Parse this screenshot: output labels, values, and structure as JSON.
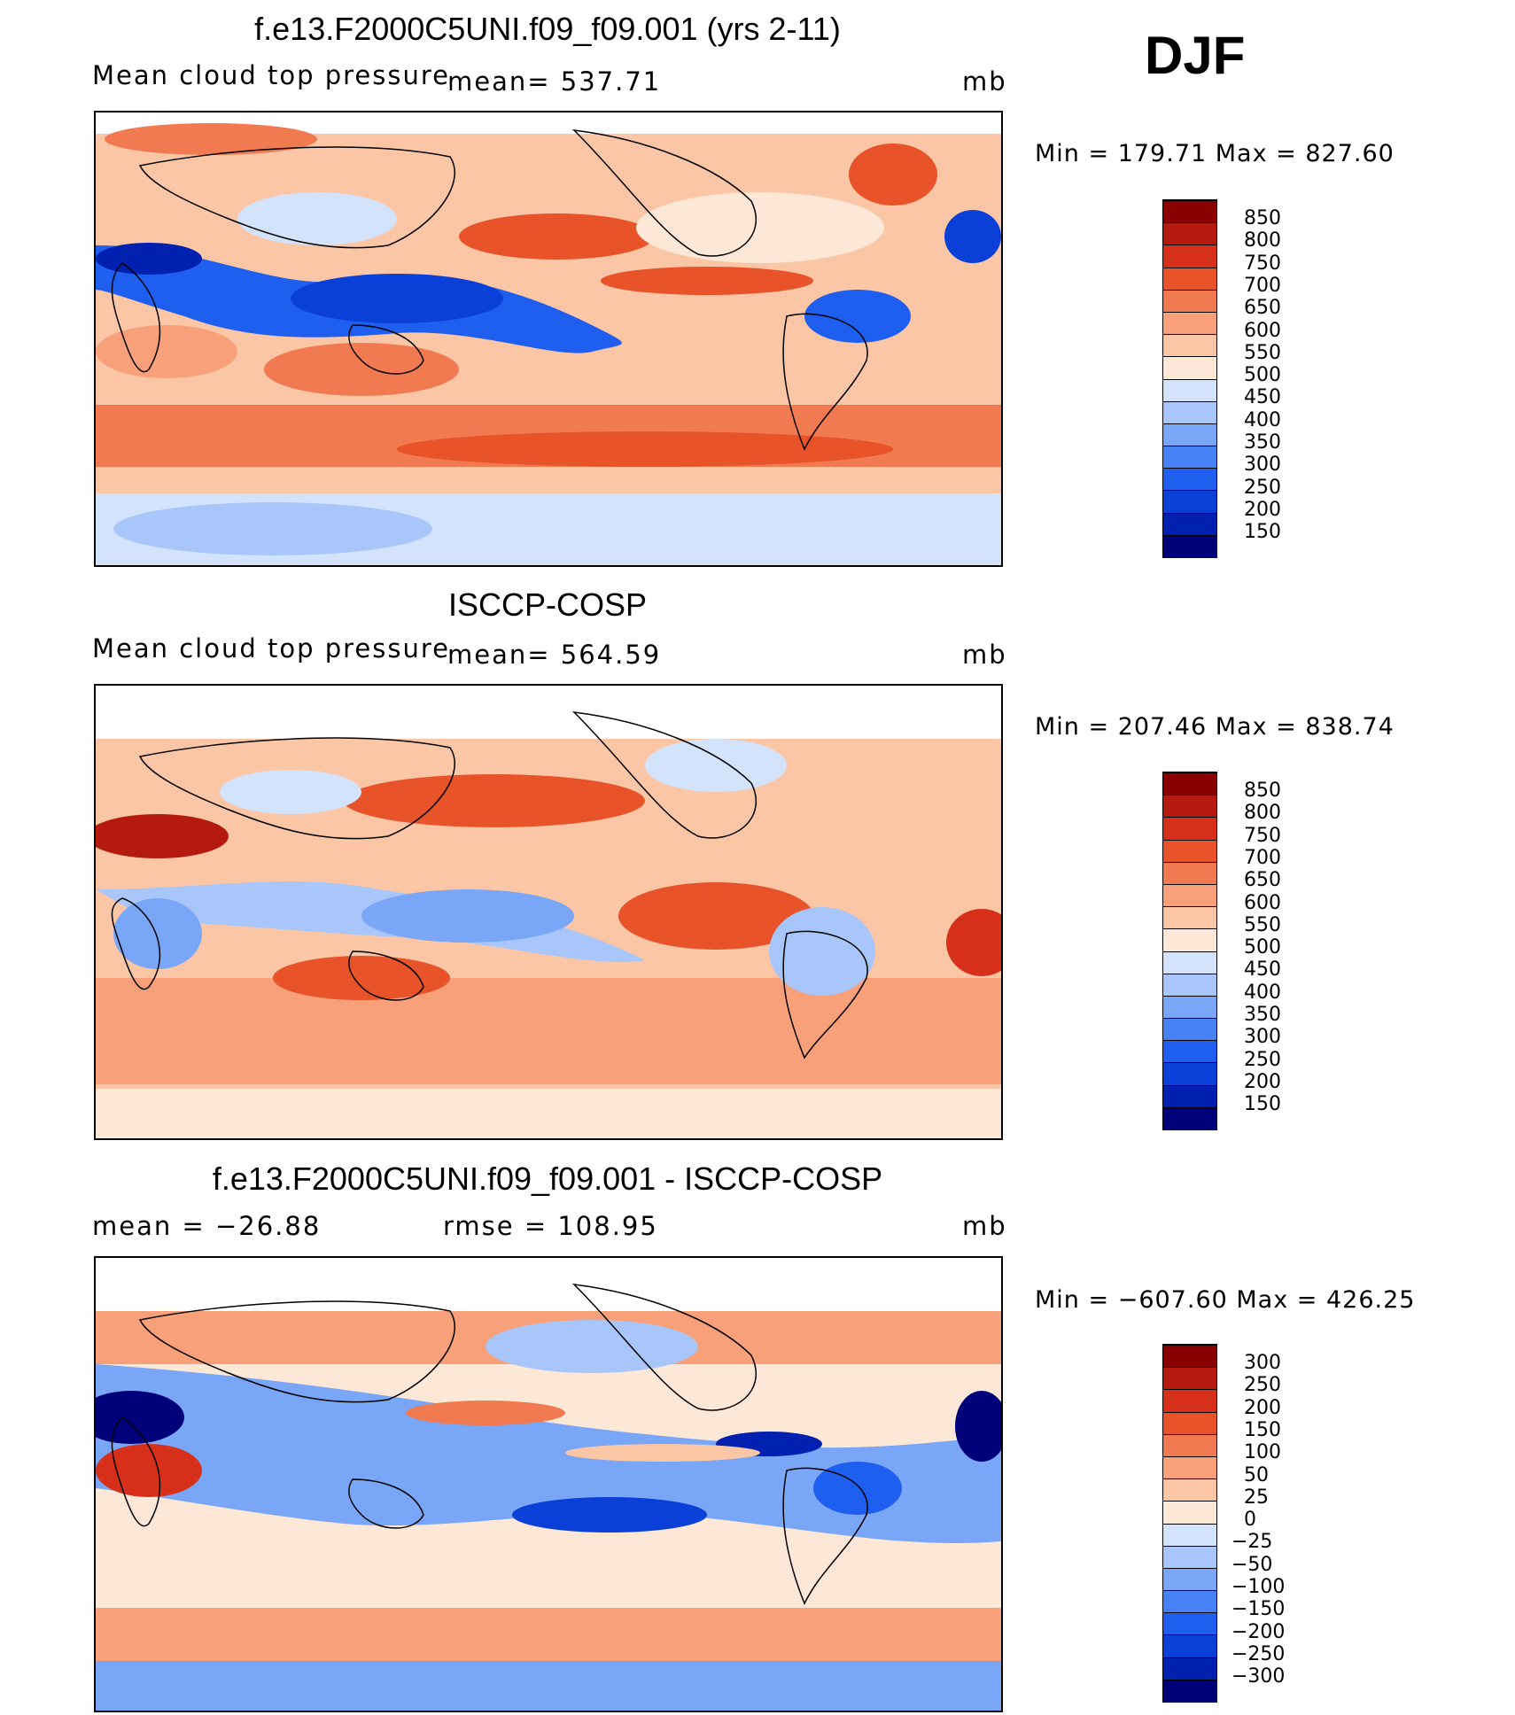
{
  "season": "DJF",
  "panels": [
    {
      "title": "f.e13.F2000C5UNI.f09_f09.001 (yrs 2-11)",
      "left_label": "Mean cloud top pressure",
      "center_label": "mean= 537.71",
      "right_label": "mb",
      "minmax": "Min = 179.71 Max = 827.60"
    },
    {
      "title": "ISCCP-COSP",
      "left_label": "Mean cloud top pressure",
      "center_label": "mean= 564.59",
      "right_label": "mb",
      "minmax": "Min = 207.46 Max = 838.74"
    },
    {
      "title": "f.e13.F2000C5UNI.f09_f09.001 - ISCCP-COSP",
      "left_label": "mean = −26.88",
      "center_label": "rmse = 108.95",
      "right_label": "mb",
      "minmax": "Min = −607.60 Max = 426.25"
    }
  ],
  "colors": {
    "abs_scale": [
      "#00007a",
      "#0020b0",
      "#0a3fd8",
      "#1e5ff0",
      "#4682f5",
      "#7aa6f7",
      "#a8c6f9",
      "#d2e3fb",
      "#fde8d8",
      "#fbc6a6",
      "#f7a07a",
      "#f27a50",
      "#e8532a",
      "#d6301a",
      "#b51a0e",
      "#8a0000"
    ],
    "diff_scale": [
      "#00007a",
      "#0020b0",
      "#0a3fd8",
      "#1e5ff0",
      "#4682f5",
      "#7aa6f7",
      "#a8c6f9",
      "#d2e3fb",
      "#fde8d8",
      "#fbc6a6",
      "#f7a07a",
      "#f27a50",
      "#e8532a",
      "#d6301a",
      "#b51a0e",
      "#8a0000"
    ]
  },
  "chart_data": [
    {
      "type": "heatmap",
      "title": "f.e13.F2000C5UNI.f09_f09.001 (yrs 2-11)",
      "variable": "Mean cloud top pressure",
      "units": "mb",
      "mean": 537.71,
      "min": 179.71,
      "max": 827.6,
      "colorbar_levels": [
        150,
        200,
        250,
        300,
        350,
        400,
        450,
        500,
        550,
        600,
        650,
        700,
        750,
        800,
        850
      ],
      "colorbar_labels": [
        "850",
        "800",
        "750",
        "700",
        "650",
        "600",
        "550",
        "500",
        "450",
        "400",
        "350",
        "300",
        "250",
        "200",
        "150"
      ]
    },
    {
      "type": "heatmap",
      "title": "ISCCP-COSP",
      "variable": "Mean cloud top pressure",
      "units": "mb",
      "mean": 564.59,
      "min": 207.46,
      "max": 838.74,
      "colorbar_levels": [
        150,
        200,
        250,
        300,
        350,
        400,
        450,
        500,
        550,
        600,
        650,
        700,
        750,
        800,
        850
      ],
      "colorbar_labels": [
        "850",
        "800",
        "750",
        "700",
        "650",
        "600",
        "550",
        "500",
        "450",
        "400",
        "350",
        "300",
        "250",
        "200",
        "150"
      ]
    },
    {
      "type": "heatmap",
      "title": "f.e13.F2000C5UNI.f09_f09.001 - ISCCP-COSP",
      "units": "mb",
      "mean": -26.88,
      "rmse": 108.95,
      "min": -607.6,
      "max": 426.25,
      "colorbar_levels": [
        -300,
        -250,
        -200,
        -150,
        -100,
        -50,
        -25,
        0,
        25,
        50,
        100,
        150,
        200,
        250,
        300
      ],
      "colorbar_labels": [
        "300",
        "250",
        "200",
        "150",
        "100",
        "50",
        "25",
        "0",
        "−25",
        "−50",
        "−100",
        "−150",
        "−200",
        "−250",
        "−300"
      ]
    }
  ]
}
